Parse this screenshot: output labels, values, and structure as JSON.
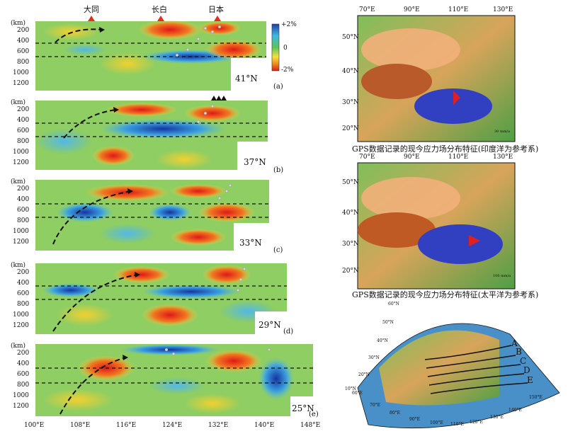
{
  "top_markers": [
    {
      "label": "大同"
    },
    {
      "label": "长白"
    },
    {
      "label": "日本"
    }
  ],
  "colorbar": {
    "top": "+2%",
    "mid": "0",
    "bottom": "-2%"
  },
  "depth_unit": "(km)",
  "depth_ticks": [
    "200",
    "400",
    "600",
    "800",
    "1000",
    "1200"
  ],
  "panels": [
    {
      "id": "a",
      "label": "(a)",
      "lat": "41°N"
    },
    {
      "id": "b",
      "label": "(b)",
      "lat": "37°N"
    },
    {
      "id": "c",
      "label": "(c)",
      "lat": "33°N"
    },
    {
      "id": "d",
      "label": "(d)",
      "lat": "29°N"
    },
    {
      "id": "e",
      "label": "(e)",
      "lat": "25°N"
    }
  ],
  "lon_ticks": [
    "100°E",
    "108°E",
    "116°E",
    "124°E",
    "132°E",
    "140°E",
    "148°E"
  ],
  "map_top": {
    "lon": [
      "70°E",
      "90°E",
      "110°E",
      "130°E"
    ],
    "lat": [
      "50°N",
      "40°N",
      "30°N",
      "20°N"
    ],
    "scale": "30 mm/a",
    "caption": "GPS数据记录的现今应力场分布特征(印度洋为参考系)"
  },
  "map_mid": {
    "lon": [
      "70°E",
      "90°E",
      "110°E",
      "130°E"
    ],
    "lat": [
      "50°N",
      "40°N",
      "30°N",
      "20°N"
    ],
    "scale": "100 mm/a",
    "caption": "GPS数据记录的现今应力场分布特征(太平洋为参考系)"
  },
  "overview": {
    "profile_letters": [
      "A",
      "B",
      "C",
      "D",
      "E"
    ],
    "lat_labels": [
      "60°N",
      "50°N",
      "40°N",
      "30°N",
      "20°N",
      "10°N"
    ],
    "lon_labels": [
      "60°E",
      "70°E",
      "80°E",
      "90°E",
      "100°E",
      "110°E",
      "120°E",
      "130°E",
      "140°E",
      "150°E"
    ]
  }
}
